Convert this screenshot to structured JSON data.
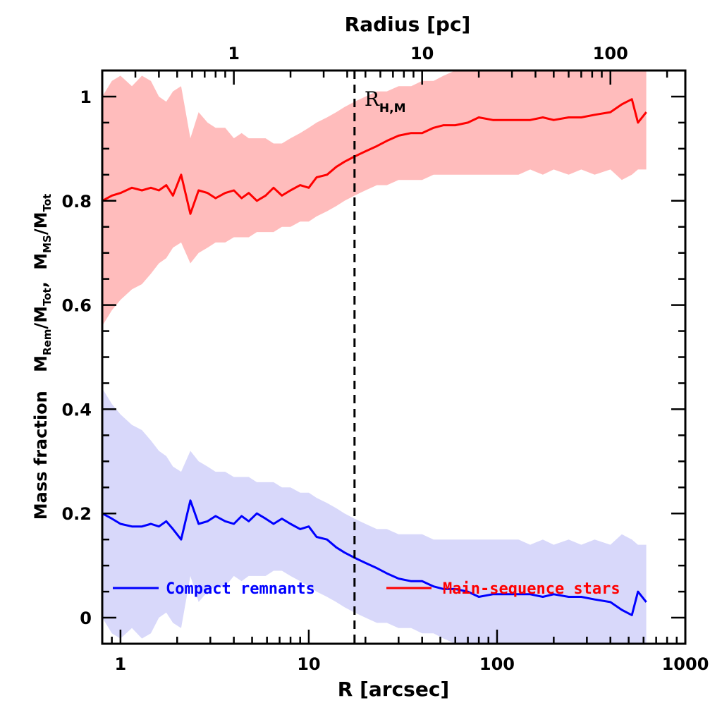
{
  "chart_data": {
    "type": "line",
    "title": "",
    "xlabel": "R [arcsec]",
    "xlabel_top": "Radius [pc]",
    "ylabel_parts": {
      "lead": "Mass fraction",
      "m1": "M",
      "s1": "Rem",
      "sep1": "/",
      "m2": "M",
      "s2": "Tot",
      "comma": ",",
      "m3": "M",
      "s3": "MS",
      "sep2": "/",
      "m4": "M",
      "s4": "Tot"
    },
    "x_scale": "log",
    "xlim": [
      0.8,
      1000
    ],
    "ylim": [
      -0.05,
      1.05
    ],
    "x_ticks": [
      1,
      10,
      100,
      1000
    ],
    "x_tick_labels": [
      "1",
      "10",
      "100",
      "1000"
    ],
    "x_top_ticks_pc": [
      1,
      10,
      100
    ],
    "x_top_tick_labels": [
      "1",
      "10",
      "100"
    ],
    "arcsec_per_pc": 4.0,
    "y_ticks": [
      0,
      0.2,
      0.4,
      0.6,
      0.8,
      1
    ],
    "y_tick_labels": [
      "0",
      "0.2",
      "0.4",
      "0.6",
      "0.8",
      "1"
    ],
    "vline": {
      "x": 17.5,
      "label_main": "R",
      "label_sub": "H,M",
      "style": "dashed"
    },
    "x": [
      0.8,
      0.9,
      1.0,
      1.15,
      1.3,
      1.45,
      1.6,
      1.75,
      1.9,
      2.1,
      2.35,
      2.6,
      2.9,
      3.2,
      3.6,
      4.0,
      4.4,
      4.8,
      5.3,
      5.9,
      6.5,
      7.2,
      8.0,
      9.0,
      10.0,
      11.0,
      12.5,
      14.0,
      15.5,
      17.5,
      20,
      23,
      26,
      30,
      35,
      40,
      46,
      52,
      60,
      70,
      80,
      95,
      110,
      130,
      150,
      175,
      200,
      240,
      280,
      330,
      400,
      460,
      520,
      560,
      620
    ],
    "series": [
      {
        "name": "Main-sequence stars",
        "color": "#ff0000",
        "band_color": "#ffbcbc",
        "values": [
          0.8,
          0.81,
          0.815,
          0.825,
          0.82,
          0.825,
          0.82,
          0.83,
          0.81,
          0.85,
          0.775,
          0.82,
          0.815,
          0.805,
          0.815,
          0.82,
          0.805,
          0.815,
          0.8,
          0.81,
          0.825,
          0.81,
          0.82,
          0.83,
          0.825,
          0.845,
          0.85,
          0.865,
          0.875,
          0.885,
          0.895,
          0.905,
          0.915,
          0.925,
          0.93,
          0.93,
          0.94,
          0.945,
          0.945,
          0.95,
          0.96,
          0.955,
          0.955,
          0.955,
          0.955,
          0.96,
          0.955,
          0.96,
          0.96,
          0.965,
          0.97,
          0.985,
          0.995,
          0.95,
          0.97
        ],
        "upper": [
          1.0,
          1.03,
          1.04,
          1.02,
          1.04,
          1.03,
          1.0,
          0.99,
          1.01,
          1.02,
          0.92,
          0.97,
          0.95,
          0.94,
          0.94,
          0.92,
          0.93,
          0.92,
          0.92,
          0.92,
          0.91,
          0.91,
          0.92,
          0.93,
          0.94,
          0.95,
          0.96,
          0.97,
          0.98,
          0.99,
          1.0,
          1.01,
          1.01,
          1.02,
          1.02,
          1.03,
          1.03,
          1.04,
          1.05,
          1.05,
          1.05,
          1.05,
          1.05,
          1.05,
          1.05,
          1.05,
          1.05,
          1.05,
          1.05,
          1.05,
          1.05,
          1.05,
          1.05,
          1.05,
          1.05
        ],
        "lower": [
          0.56,
          0.59,
          0.61,
          0.63,
          0.64,
          0.66,
          0.68,
          0.69,
          0.71,
          0.72,
          0.68,
          0.7,
          0.71,
          0.72,
          0.72,
          0.73,
          0.73,
          0.73,
          0.74,
          0.74,
          0.74,
          0.75,
          0.75,
          0.76,
          0.76,
          0.77,
          0.78,
          0.79,
          0.8,
          0.81,
          0.82,
          0.83,
          0.83,
          0.84,
          0.84,
          0.84,
          0.85,
          0.85,
          0.85,
          0.85,
          0.85,
          0.85,
          0.85,
          0.85,
          0.86,
          0.85,
          0.86,
          0.85,
          0.86,
          0.85,
          0.86,
          0.84,
          0.85,
          0.86,
          0.86
        ]
      },
      {
        "name": "Compact remnants",
        "color": "#0000ff",
        "band_color": "#d8d8fa",
        "values": [
          0.2,
          0.19,
          0.18,
          0.175,
          0.175,
          0.18,
          0.175,
          0.185,
          0.17,
          0.15,
          0.225,
          0.18,
          0.185,
          0.195,
          0.185,
          0.18,
          0.195,
          0.185,
          0.2,
          0.19,
          0.18,
          0.19,
          0.18,
          0.17,
          0.175,
          0.155,
          0.15,
          0.135,
          0.125,
          0.115,
          0.105,
          0.095,
          0.085,
          0.075,
          0.07,
          0.07,
          0.06,
          0.055,
          0.055,
          0.05,
          0.04,
          0.045,
          0.045,
          0.045,
          0.045,
          0.04,
          0.045,
          0.04,
          0.04,
          0.035,
          0.03,
          0.015,
          0.005,
          0.05,
          0.03
        ],
        "upper": [
          0.44,
          0.41,
          0.39,
          0.37,
          0.36,
          0.34,
          0.32,
          0.31,
          0.29,
          0.28,
          0.32,
          0.3,
          0.29,
          0.28,
          0.28,
          0.27,
          0.27,
          0.27,
          0.26,
          0.26,
          0.26,
          0.25,
          0.25,
          0.24,
          0.24,
          0.23,
          0.22,
          0.21,
          0.2,
          0.19,
          0.18,
          0.17,
          0.17,
          0.16,
          0.16,
          0.16,
          0.15,
          0.15,
          0.15,
          0.15,
          0.15,
          0.15,
          0.15,
          0.15,
          0.14,
          0.15,
          0.14,
          0.15,
          0.14,
          0.15,
          0.14,
          0.16,
          0.15,
          0.14,
          0.14
        ],
        "lower": [
          0.0,
          -0.03,
          -0.04,
          -0.02,
          -0.04,
          -0.03,
          0.0,
          0.01,
          -0.01,
          -0.02,
          0.08,
          0.03,
          0.05,
          0.06,
          0.06,
          0.08,
          0.07,
          0.08,
          0.08,
          0.08,
          0.09,
          0.09,
          0.08,
          0.07,
          0.06,
          0.05,
          0.04,
          0.03,
          0.02,
          0.01,
          0.0,
          -0.01,
          -0.01,
          -0.02,
          -0.02,
          -0.03,
          -0.03,
          -0.04,
          -0.05,
          -0.05,
          -0.05,
          -0.05,
          -0.05,
          -0.05,
          -0.05,
          -0.05,
          -0.05,
          -0.05,
          -0.05,
          -0.05,
          -0.05,
          -0.05,
          -0.05,
          -0.05,
          -0.05
        ]
      }
    ],
    "legend": [
      {
        "label": "Compact remnants",
        "color": "#0000ff"
      },
      {
        "label": "Main-sequence stars",
        "color": "#ff0000"
      }
    ],
    "legend_position": "bottom"
  }
}
